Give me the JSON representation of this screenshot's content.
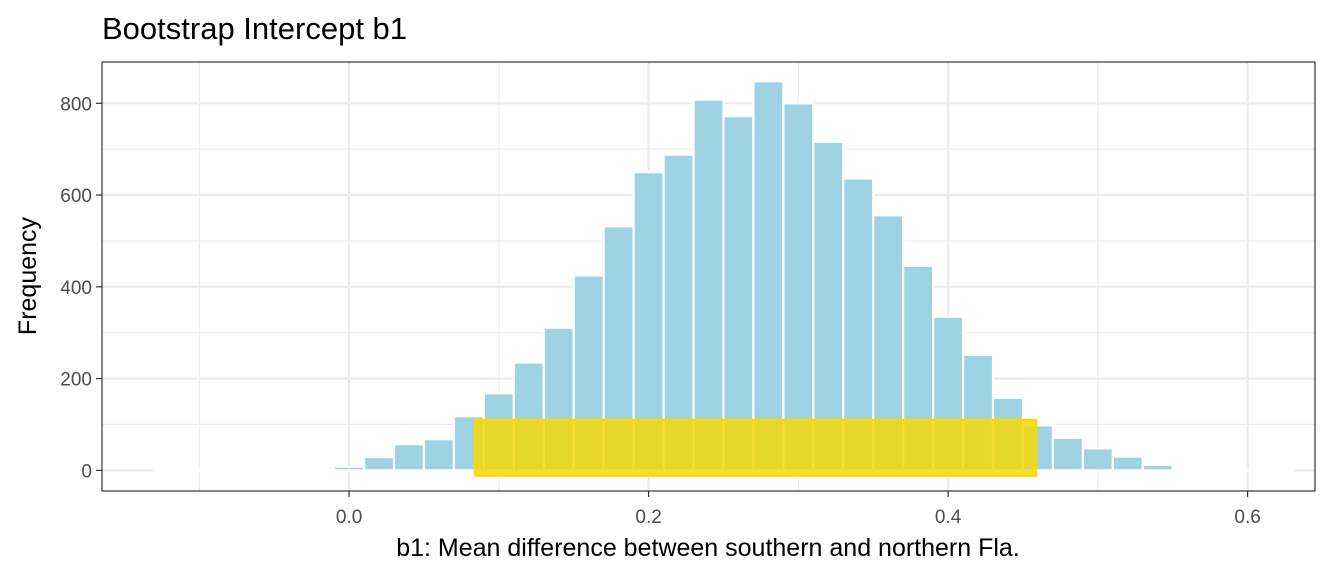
{
  "chart_data": {
    "type": "bar",
    "title": "Bootstrap Intercept b1",
    "xlabel": "b1: Mean difference between southern and northern Fla.",
    "ylabel": "Frequency",
    "xlim": [
      -0.165,
      0.645
    ],
    "ylim": [
      -45,
      890
    ],
    "x_ticks": [
      0.0,
      0.2,
      0.4,
      0.6
    ],
    "x_tick_labels": [
      "0.0",
      "0.2",
      "0.4",
      "0.6"
    ],
    "y_ticks": [
      0,
      200,
      400,
      600,
      800
    ],
    "y_tick_labels": [
      "0",
      "200",
      "400",
      "600",
      "800"
    ],
    "grid": true,
    "legend": "none",
    "bin_width": 0.02,
    "bins": {
      "x": [
        -0.12,
        -0.1,
        -0.08,
        -0.06,
        -0.04,
        -0.02,
        0.0,
        0.02,
        0.04,
        0.06,
        0.08,
        0.1,
        0.12,
        0.14,
        0.16,
        0.18,
        0.2,
        0.22,
        0.24,
        0.26,
        0.28,
        0.3,
        0.32,
        0.34,
        0.36,
        0.38,
        0.4,
        0.42,
        0.44,
        0.46,
        0.48,
        0.5,
        0.52,
        0.54,
        0.56,
        0.58,
        0.6,
        0.62
      ],
      "count": [
        1,
        1,
        1,
        1,
        1,
        4,
        8,
        29,
        57,
        68,
        118,
        168,
        235,
        311,
        425,
        532,
        650,
        688,
        808,
        772,
        848,
        800,
        716,
        636,
        556,
        446,
        335,
        252,
        158,
        98,
        71,
        48,
        30,
        12,
        4,
        1,
        1,
        1
      ]
    },
    "highlight_interval": {
      "lower": 0.084,
      "upper": 0.459
    },
    "colors": {
      "bar_fill": "#9fd2e2",
      "bar_stroke": "#ffffff",
      "interval_fill": "#f5d80a",
      "interval_opacity": 0.85,
      "interval_stroke": "#ffd700",
      "grid": "#ebebeb",
      "panel_border": "#333333"
    }
  }
}
